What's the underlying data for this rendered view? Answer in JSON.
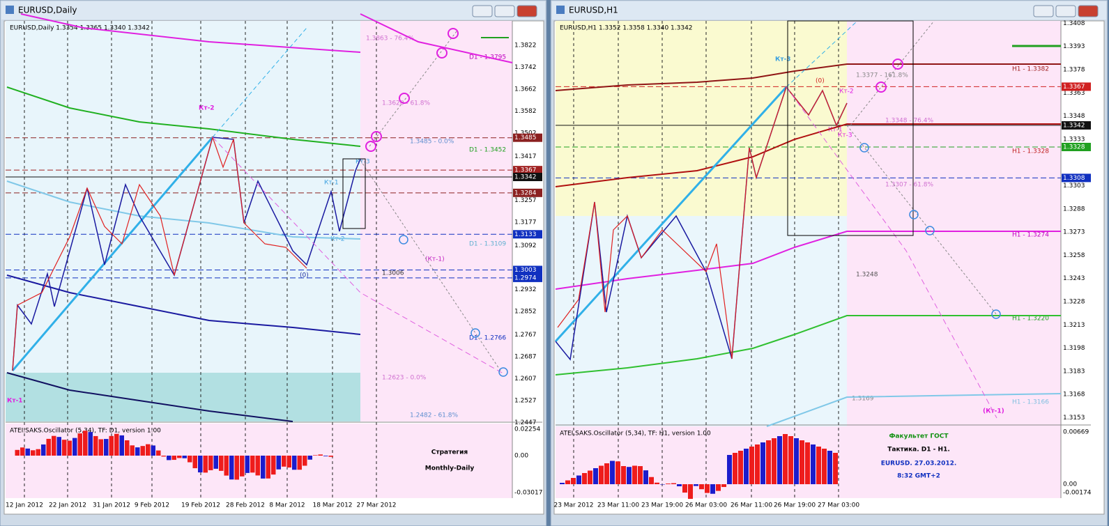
{
  "windows": [
    {
      "title": "EURUSD,Daily",
      "info": "EURUSD,Daily  1.3354 1.3365 1.3340 1.3342",
      "price_labels": [
        "1.3822",
        "1.3742",
        "1.3662",
        "1.3582",
        "1.3502",
        "1.3417",
        "1.3257",
        "1.3177",
        "1.3092",
        "1.2932",
        "1.2852",
        "1.2767",
        "1.2687",
        "1.2607",
        "1.2527",
        "1.2447"
      ],
      "highlighted_prices": [
        "1.3485",
        "1.3367",
        "1.3342",
        "1.3284",
        "1.3133",
        "1.3003",
        "1.2974"
      ],
      "level_labels": [
        "1.3863 - 76.4%",
        "D1 - 1.3795",
        "1.3626 - 61.8%",
        "1.3485 - 0.0%",
        "D1 - 1.3452",
        "D1 - 1.3109",
        "1.3006",
        "D1 - 1.2766",
        "1.2623 - 0.0%",
        "1.2482 - 61.8%"
      ],
      "annotations": [
        "Кт-2",
        "Кт-1",
        "Кт-3",
        "Кт-2",
        "(0)",
        "(Кт-1)",
        "Кт-1"
      ],
      "oscillator": {
        "title": "ATEI.SAKS.Oscillator (5,34), TF: D1,  version 1.00",
        "scale": [
          "0.02254",
          "0.00",
          "-0.03017"
        ]
      },
      "dates": [
        "12 Jan 2012",
        "22 Jan 2012",
        "31 Jan 2012",
        "9 Feb 2012",
        "19 Feb 2012",
        "28 Feb 2012",
        "8 Mar 2012",
        "18 Mar 2012",
        "27 Mar 2012"
      ],
      "note": [
        "Стратегия",
        "Monthly-Daily"
      ]
    },
    {
      "title": "EURUSD,H1",
      "info": "EURUSD,H1  1.3352 1.3358 1.3340 1.3342",
      "price_labels": [
        "1.3408",
        "1.3393",
        "1.3378",
        "1.3363",
        "1.3348",
        "1.3333",
        "1.3303",
        "1.3288",
        "1.3273",
        "1.3258",
        "1.3243",
        "1.3228",
        "1.3213",
        "1.3198",
        "1.3183",
        "1.3168",
        "1.3153"
      ],
      "highlighted_prices": [
        "1.3367",
        "1.3342",
        "1.3328",
        "1.3308"
      ],
      "level_labels": [
        "H1 - 1.3382",
        "1.3377 - 161.8%",
        "1.3348 - 76.4%",
        "H1 - 1.3328",
        "1.3307 - 61.8%",
        "H1 - 1.3274",
        "1.3248",
        "H1 - 1.3220",
        "1.3169",
        "H1 - 1.3166"
      ],
      "annotations": [
        "Кт-3",
        "(0)",
        "Кт-2",
        "Кт-1",
        "Кт-3",
        "(Кт-1)"
      ],
      "oscillator": {
        "title": "ATEI.SAKS.Oscillator (5,34), TF: H1,  version 1.00",
        "scale": [
          "0.00669",
          "0.00",
          "-0.00174"
        ]
      },
      "dates": [
        "23 Mar 2012",
        "23 Mar 11:00",
        "23 Mar 19:00",
        "26 Mar 03:00",
        "26 Mar 11:00",
        "26 Mar 19:00",
        "27 Mar 03:00"
      ],
      "note": [
        "Факультет ГОСТ",
        "Тактика. D1 - H1.",
        "EURUSD.  27.03.2012.",
        "8:32  GMT+2"
      ]
    }
  ]
}
